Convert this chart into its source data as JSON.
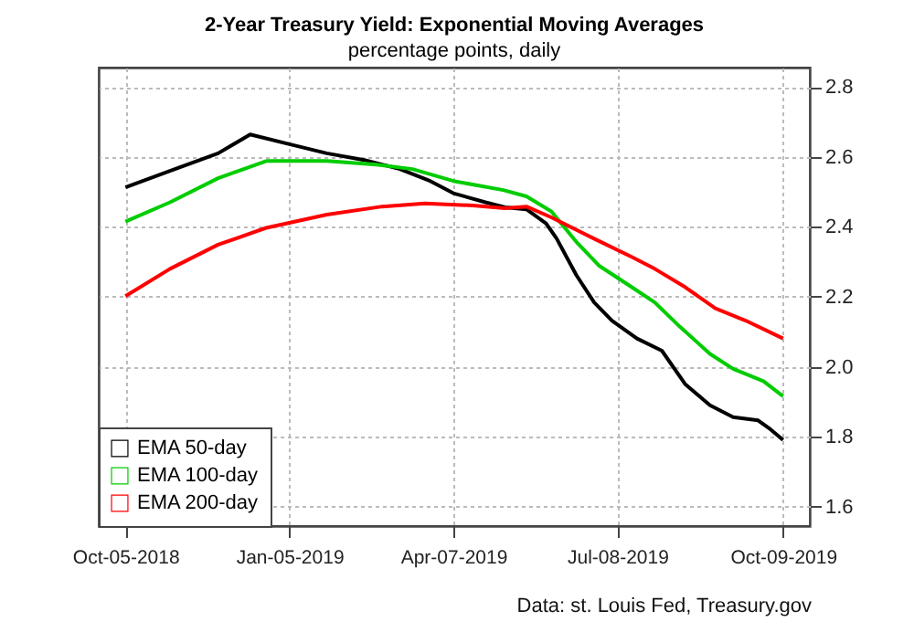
{
  "chart_data": {
    "type": "line",
    "title": "2-Year Treasury Yield: Exponential Moving Averages",
    "subtitle": "percentage points, daily",
    "annotations": [
      "Data: st. Louis Fed, Treasury.gov"
    ],
    "xlim": [
      "2018-09-20",
      "2019-10-24"
    ],
    "xticks": [
      {
        "value": "2018-10-05",
        "label": "Oct-05-2018"
      },
      {
        "value": "2019-01-05",
        "label": "Jan-05-2019"
      },
      {
        "value": "2019-04-07",
        "label": "Apr-07-2019"
      },
      {
        "value": "2019-07-08",
        "label": "Jul-08-2019"
      },
      {
        "value": "2019-10-09",
        "label": "Oct-09-2019"
      }
    ],
    "ylim": [
      1.545,
      2.855
    ],
    "yticks": [
      1.6,
      1.8,
      {
        "value": 2,
        "label": "2.0"
      },
      2.2,
      2.4,
      2.6,
      2.8
    ],
    "grid": true,
    "legend": "bottom left",
    "marker": "none",
    "line_style": "solid",
    "series": [
      {
        "name": "EMA 50-day",
        "color": "#000000",
        "x": [
          "2018-10-05",
          "2018-10-30",
          "2018-11-26",
          "2018-12-14",
          "2019-01-05",
          "2019-01-26",
          "2019-02-16",
          "2019-03-08",
          "2019-03-25",
          "2019-04-07",
          "2019-04-25",
          "2019-05-06",
          "2019-05-18",
          "2019-05-29",
          "2019-06-04",
          "2019-06-15",
          "2019-06-25",
          "2019-07-05",
          "2019-07-19",
          "2019-08-02",
          "2019-08-15",
          "2019-08-29",
          "2019-09-11",
          "2019-09-25",
          "2019-10-02",
          "2019-10-09"
        ],
        "values": [
          2.513,
          2.56,
          2.61,
          2.664,
          2.636,
          2.61,
          2.591,
          2.565,
          2.531,
          2.496,
          2.47,
          2.456,
          2.45,
          2.41,
          2.366,
          2.262,
          2.184,
          2.132,
          2.081,
          2.046,
          1.951,
          1.89,
          1.856,
          1.847,
          1.821,
          1.791
        ]
      },
      {
        "name": "EMA 100-day",
        "color": "#00cc00",
        "x": [
          "2018-10-05",
          "2018-10-30",
          "2018-11-26",
          "2018-12-23",
          "2019-01-26",
          "2019-02-23",
          "2019-03-15",
          "2019-04-07",
          "2019-05-05",
          "2019-05-18",
          "2019-06-01",
          "2019-06-15",
          "2019-06-28",
          "2019-07-16",
          "2019-07-29",
          "2019-08-12",
          "2019-08-29",
          "2019-09-11",
          "2019-09-28",
          "2019-10-09"
        ],
        "values": [
          2.415,
          2.47,
          2.539,
          2.588,
          2.588,
          2.578,
          2.565,
          2.531,
          2.505,
          2.487,
          2.444,
          2.357,
          2.288,
          2.228,
          2.184,
          2.115,
          2.037,
          1.994,
          1.959,
          1.916
        ]
      },
      {
        "name": "EMA 200-day",
        "color": "#ff0000",
        "x": [
          "2018-10-05",
          "2018-10-30",
          "2018-11-26",
          "2018-12-23",
          "2019-01-26",
          "2019-02-26",
          "2019-03-22",
          "2019-04-18",
          "2019-05-06",
          "2019-05-18",
          "2019-06-01",
          "2019-06-25",
          "2019-07-16",
          "2019-07-29",
          "2019-08-15",
          "2019-09-01",
          "2019-09-18",
          "2019-10-09"
        ],
        "values": [
          2.202,
          2.28,
          2.349,
          2.397,
          2.435,
          2.458,
          2.467,
          2.461,
          2.453,
          2.458,
          2.427,
          2.366,
          2.314,
          2.28,
          2.228,
          2.167,
          2.132,
          2.081
        ]
      }
    ]
  }
}
